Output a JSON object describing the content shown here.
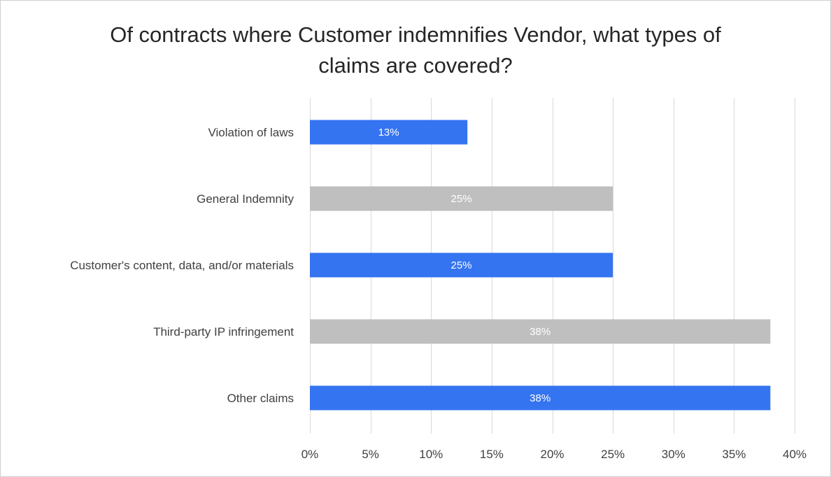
{
  "chart_data": {
    "type": "bar",
    "orientation": "horizontal",
    "title_lines": [
      "Of contracts where Customer indemnifies Vendor, what types of",
      "claims are covered?"
    ],
    "categories": [
      "Violation of laws",
      "General Indemnity",
      "Customer's content, data, and/or materials",
      "Third-party IP infringement",
      "Other claims"
    ],
    "values": [
      13,
      25,
      25,
      38,
      38
    ],
    "data_labels": [
      "13%",
      "25%",
      "25%",
      "38%",
      "38%"
    ],
    "bar_colors": [
      "#3574f0",
      "#bfbfbf",
      "#3574f0",
      "#bfbfbf",
      "#3574f0"
    ],
    "xlim": [
      0,
      40
    ],
    "x_ticks": [
      0,
      5,
      10,
      15,
      20,
      25,
      30,
      35,
      40
    ],
    "x_tick_labels": [
      "0%",
      "5%",
      "10%",
      "15%",
      "20%",
      "25%",
      "30%",
      "35%",
      "40%"
    ],
    "xlabel": "",
    "ylabel": "",
    "grid": true,
    "gridline_color": "#d9d9d9",
    "legend": "none"
  }
}
